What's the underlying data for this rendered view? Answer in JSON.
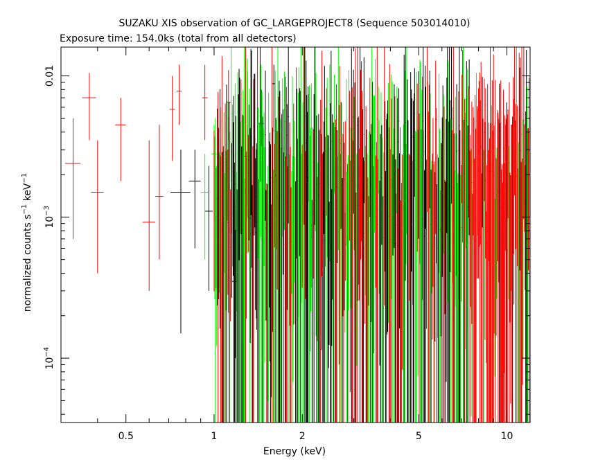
{
  "title": "SUZAKU XIS observation of GC_LARGEPROJECT8 (Sequence 503014010)",
  "subtitle": "Exposure time: 154.0ks (total from all detectors)",
  "colors": {
    "black": "#000000",
    "red": "#ff0000",
    "green": "#00ff00",
    "axis": "#000000"
  },
  "chart_data": {
    "type": "scatter",
    "xlabel": "Energy (keV)",
    "ylabel_main": "normalized counts s",
    "ylabel_sup1": "−1",
    "ylabel_mid": " keV",
    "ylabel_sup2": "−1",
    "x_scale": "log",
    "y_scale": "log",
    "xlim": [
      0.3,
      12.0
    ],
    "ylim": [
      3.5e-05,
      0.016
    ],
    "x_ticks": [
      {
        "value": 0.5,
        "label": "0.5"
      },
      {
        "value": 1,
        "label": "1"
      },
      {
        "value": 2,
        "label": "2"
      },
      {
        "value": 5,
        "label": "5"
      },
      {
        "value": 10,
        "label": "10"
      }
    ],
    "y_ticks": [
      {
        "value": 0.01,
        "label": "0.01",
        "base": "",
        "exp": ""
      },
      {
        "value": 0.001,
        "label": "",
        "base": "10",
        "exp": "−3"
      },
      {
        "value": 0.0001,
        "label": "",
        "base": "10",
        "exp": "−4"
      }
    ],
    "legend": "none",
    "grid": false,
    "series": [
      {
        "color": "red",
        "points": [
          {
            "x": 0.33,
            "y": 0.0024,
            "xerr": 0.02,
            "ylo": 0.0007,
            "yhi": 0.005
          },
          {
            "x": 0.375,
            "y": 0.007,
            "xerr": 0.02,
            "ylo": 0.0035,
            "yhi": 0.0105
          },
          {
            "x": 0.4,
            "y": 0.0015,
            "xerr": 0.02,
            "ylo": 0.0004,
            "yhi": 0.0035
          },
          {
            "x": 0.48,
            "y": 0.0045,
            "xerr": 0.02,
            "ylo": 0.0018,
            "yhi": 0.007
          },
          {
            "x": 0.6,
            "y": 0.00092,
            "xerr": 0.03,
            "ylo": 0.0003,
            "yhi": 0.0035
          },
          {
            "x": 0.65,
            "y": 0.0014,
            "xerr": 0.02,
            "ylo": 0.0005,
            "yhi": 0.0045
          },
          {
            "x": 0.72,
            "y": 0.0058,
            "xerr": 0.015,
            "ylo": 0.0025,
            "yhi": 0.01
          },
          {
            "x": 0.76,
            "y": 0.0078,
            "xerr": 0.015,
            "ylo": 0.0045,
            "yhi": 0.012
          },
          {
            "x": 0.93,
            "y": 0.007,
            "xerr": 0.02,
            "ylo": 0.0035,
            "yhi": 0.012
          },
          {
            "x": 1.05,
            "y": 0.0026,
            "xerr": 0.02,
            "ylo": 0.0009,
            "yhi": 0.006
          },
          {
            "x": 1.12,
            "y": 0.0065,
            "xerr": 0.02,
            "ylo": 0.0035,
            "yhi": 0.011
          }
        ]
      },
      {
        "color": "black",
        "points": [
          {
            "x": 0.77,
            "y": 0.0015,
            "xerr": 0.06,
            "ylo": 0.00015,
            "yhi": 0.003
          },
          {
            "x": 0.86,
            "y": 0.0018,
            "xerr": 0.04,
            "ylo": 0.0006,
            "yhi": 0.003
          },
          {
            "x": 0.96,
            "y": 0.0011,
            "xerr": 0.03,
            "ylo": 0.0003,
            "yhi": 0.0023
          },
          {
            "x": 1.18,
            "y": 0.00035,
            "xerr": 0.03,
            "ylo": 0.0001,
            "yhi": 0.0012
          },
          {
            "x": 1.3,
            "y": 0.0027,
            "xerr": 0.04,
            "ylo": 0.0012,
            "yhi": 0.0045
          },
          {
            "x": 1.45,
            "y": 0.0046,
            "xerr": 0.03,
            "ylo": 0.0018,
            "yhi": 0.008
          },
          {
            "x": 1.6,
            "y": 0.0088,
            "xerr": 0.02,
            "ylo": 0.004,
            "yhi": 0.012
          }
        ]
      },
      {
        "color": "green",
        "points": [
          {
            "x": 0.93,
            "y": 0.0015,
            "xerr": 0.03,
            "ylo": 0.0005,
            "yhi": 0.0028
          },
          {
            "x": 1.0,
            "y": 0.0028,
            "xerr": 0.02,
            "ylo": 0.0012,
            "yhi": 0.0045
          },
          {
            "x": 1.22,
            "y": 0.0028,
            "xerr": 0.02,
            "ylo": 0.0012,
            "yhi": 0.0048
          },
          {
            "x": 1.4,
            "y": 0.0014,
            "xerr": 0.02,
            "ylo": 0.0004,
            "yhi": 0.003
          },
          {
            "x": 1.55,
            "y": 0.0019,
            "xerr": 0.02,
            "ylo": 0.0007,
            "yhi": 0.0032
          }
        ]
      }
    ]
  }
}
